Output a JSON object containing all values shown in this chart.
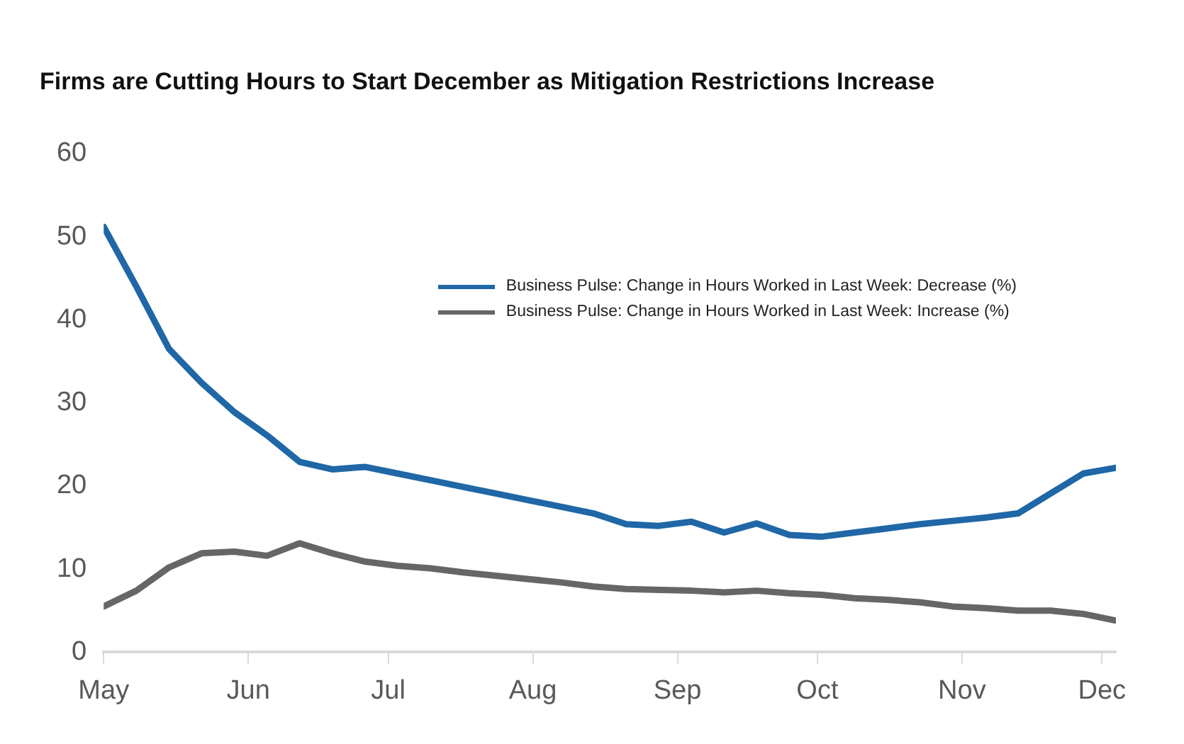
{
  "chart_data": {
    "type": "line",
    "title": "Firms are Cutting Hours to Start December as Mitigation Restrictions Increase",
    "x": [
      "--05-01",
      "--05-08",
      "--05-15",
      "--05-22",
      "--05-29",
      "--06-05",
      "--06-12",
      "--06-19",
      "--06-26",
      "--07-03",
      "--07-10",
      "--07-17",
      "--07-24",
      "--07-31",
      "--08-07",
      "--08-14",
      "--08-21",
      "--08-28",
      "--09-04",
      "--09-11",
      "--09-18",
      "--09-25",
      "--10-02",
      "--10-09",
      "--10-16",
      "--10-23",
      "--10-30",
      "--11-06",
      "--11-13",
      "--11-20",
      "--11-27",
      "--12-04"
    ],
    "series": [
      {
        "name": "Business Pulse: Change in Hours Worked in Last Week: Decrease (%)",
        "color": "#1f67a6",
        "values": [
          51.2,
          44,
          36.5,
          32.4,
          28.9,
          26.1,
          22.9,
          22.0,
          22.3,
          21.5,
          20.7,
          19.9,
          19.1,
          18.3,
          17.5,
          16.7,
          15.4,
          15.2,
          15.7,
          14.4,
          15.5,
          14.1,
          13.9,
          14.4,
          14.9,
          15.4,
          15.8,
          16.2,
          16.7,
          19.1,
          21.5,
          22.2
        ]
      },
      {
        "name": "Business Pulse: Change in Hours Worked in Last Week: Increase (%)",
        "color": "#666666",
        "values": [
          5.5,
          7.4,
          10.2,
          11.9,
          12.1,
          11.6,
          13.1,
          11.9,
          10.9,
          10.4,
          10.1,
          9.6,
          9.2,
          8.8,
          8.4,
          7.9,
          7.6,
          7.5,
          7.4,
          7.2,
          7.4,
          7.1,
          6.9,
          6.5,
          6.3,
          6.0,
          5.5,
          5.3,
          5.0,
          5.0,
          4.6,
          3.8
        ]
      }
    ],
    "xlim": [
      "--05-01",
      "--12-04"
    ],
    "xticks": [
      {
        "value": "--05-01",
        "label": "May"
      },
      {
        "value": "--06-01",
        "label": "Jun"
      },
      {
        "value": "--07-01",
        "label": "Jul"
      },
      {
        "value": "--08-01",
        "label": "Aug"
      },
      {
        "value": "--09-01",
        "label": "Sep"
      },
      {
        "value": "--10-01",
        "label": "Oct"
      },
      {
        "value": "--11-01",
        "label": "Nov"
      },
      {
        "value": "--12-01",
        "label": "Dec"
      }
    ],
    "ylim": [
      0,
      60
    ],
    "yticks": [
      0,
      10,
      20,
      30,
      40,
      50,
      60
    ],
    "grid": false,
    "legend": "top right",
    "marker": "none",
    "line_style": "solid"
  }
}
